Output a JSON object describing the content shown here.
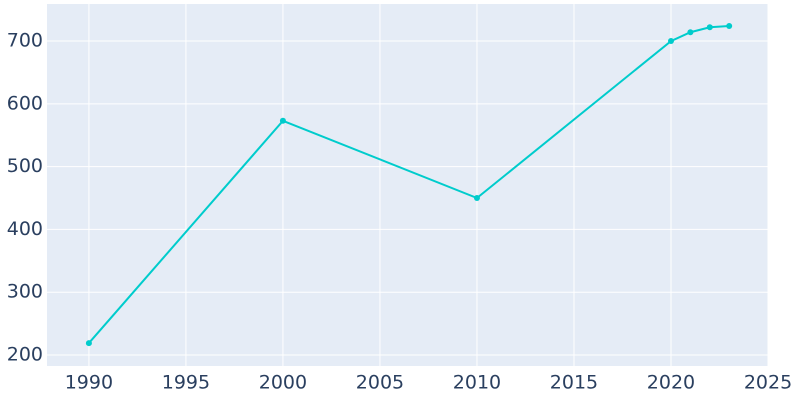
{
  "chart_data": {
    "type": "line",
    "x": [
      1990,
      2000,
      2010,
      2020,
      2021,
      2022,
      2023
    ],
    "series": [
      {
        "color": "#00cccc",
        "values": [
          219,
          573,
          450,
          700,
          714,
          722,
          724
        ]
      }
    ],
    "xlim": [
      1987.84,
      2025
    ],
    "ylim": [
      182.5,
      759
    ],
    "xticks": [
      1990,
      1995,
      2000,
      2005,
      2010,
      2015,
      2020,
      2025
    ],
    "yticks": [
      200,
      300,
      400,
      500,
      600,
      700
    ],
    "grid": true,
    "background": "#e5ecf6"
  }
}
